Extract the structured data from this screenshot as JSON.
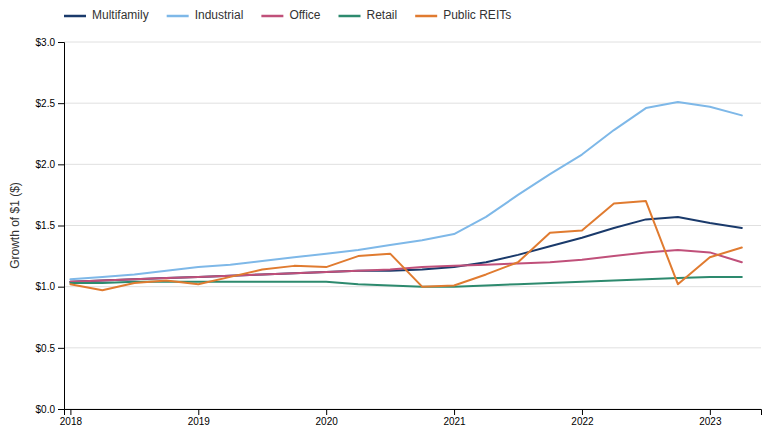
{
  "chart_data": {
    "type": "line",
    "y_label": "Growth of $1 ($)",
    "x": [
      2018.0,
      2018.25,
      2018.5,
      2018.75,
      2019.0,
      2019.25,
      2019.5,
      2019.75,
      2020.0,
      2020.25,
      2020.5,
      2020.75,
      2021.0,
      2021.25,
      2021.5,
      2021.75,
      2022.0,
      2022.25,
      2022.5,
      2022.75,
      2023.0,
      2023.25
    ],
    "series": [
      {
        "name": "Multifamily",
        "color": "#1a3a6b",
        "values": [
          1.04,
          1.05,
          1.06,
          1.07,
          1.08,
          1.09,
          1.1,
          1.11,
          1.12,
          1.13,
          1.13,
          1.14,
          1.16,
          1.2,
          1.26,
          1.33,
          1.4,
          1.48,
          1.55,
          1.57,
          1.52,
          1.48
        ]
      },
      {
        "name": "Industrial",
        "color": "#7eb8e8",
        "values": [
          1.06,
          1.08,
          1.1,
          1.13,
          1.16,
          1.18,
          1.21,
          1.24,
          1.27,
          1.3,
          1.34,
          1.38,
          1.43,
          1.57,
          1.75,
          1.92,
          2.08,
          2.28,
          2.46,
          2.51,
          2.47,
          2.4
        ]
      },
      {
        "name": "Office",
        "color": "#c0507a",
        "values": [
          1.04,
          1.05,
          1.06,
          1.07,
          1.08,
          1.09,
          1.1,
          1.11,
          1.12,
          1.13,
          1.14,
          1.16,
          1.17,
          1.18,
          1.19,
          1.2,
          1.22,
          1.25,
          1.28,
          1.3,
          1.28,
          1.2
        ]
      },
      {
        "name": "Retail",
        "color": "#2d8a6e",
        "values": [
          1.03,
          1.03,
          1.04,
          1.04,
          1.04,
          1.04,
          1.04,
          1.04,
          1.04,
          1.02,
          1.01,
          1.0,
          1.0,
          1.01,
          1.02,
          1.03,
          1.04,
          1.05,
          1.06,
          1.07,
          1.08,
          1.08
        ]
      },
      {
        "name": "Public REITs",
        "color": "#e07b30",
        "values": [
          1.02,
          0.97,
          1.03,
          1.05,
          1.02,
          1.08,
          1.14,
          1.17,
          1.16,
          1.25,
          1.27,
          1.0,
          1.01,
          1.1,
          1.2,
          1.44,
          1.46,
          1.68,
          1.7,
          1.02,
          1.24,
          1.32
        ]
      }
    ],
    "xlim": [
      2017.95,
      2023.4
    ],
    "ylim": [
      0,
      3.0
    ],
    "xticks": [
      2018,
      2019,
      2020,
      2021,
      2022,
      2023
    ],
    "yticks": [
      {
        "value": 0.0,
        "label": "$0.0"
      },
      {
        "value": 0.5,
        "label": "$0.5"
      },
      {
        "value": 1.0,
        "label": "$1.0"
      },
      {
        "value": 1.5,
        "label": "$1.5"
      },
      {
        "value": 2.0,
        "label": "$2.0"
      },
      {
        "value": 2.5,
        "label": "$2.5"
      },
      {
        "value": 3.0,
        "label": "$3.0"
      }
    ],
    "grid": true,
    "legend": "top"
  }
}
